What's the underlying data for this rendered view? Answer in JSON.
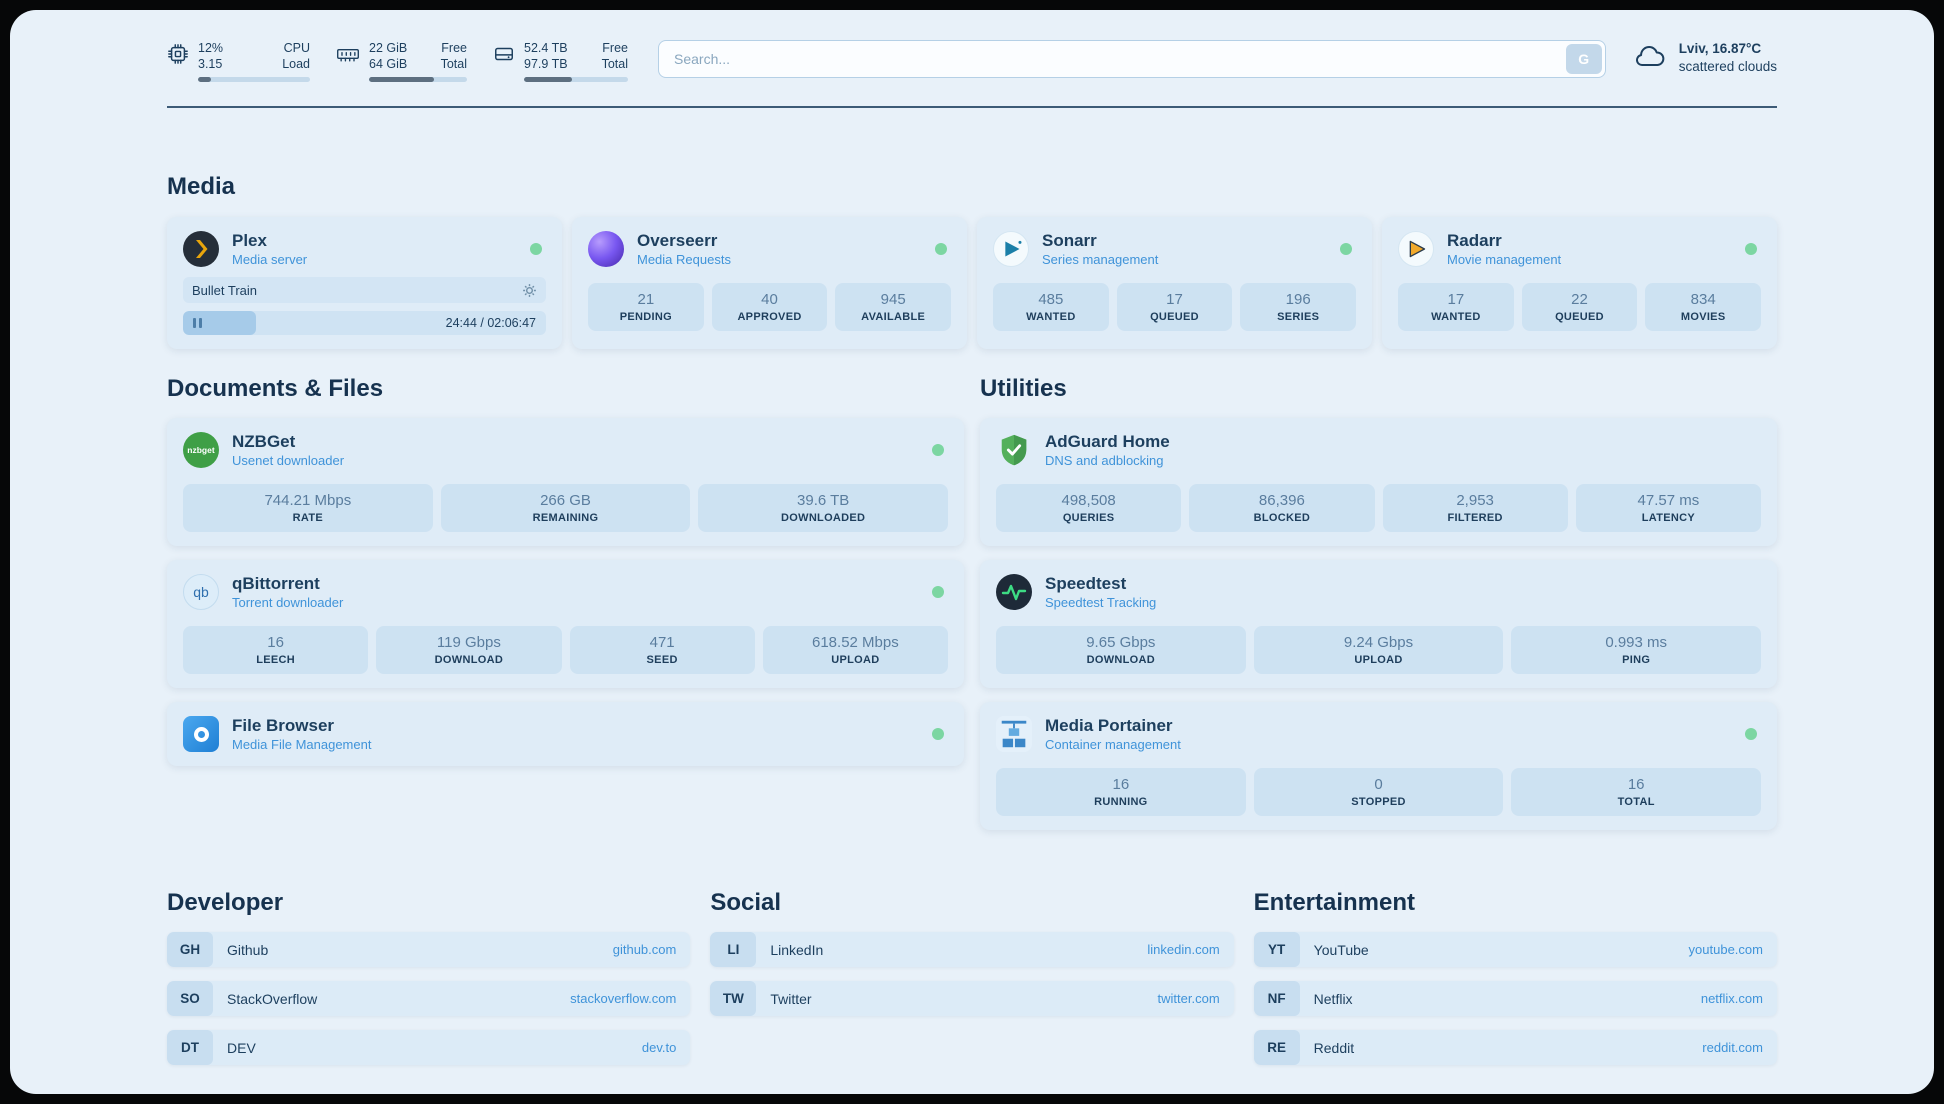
{
  "colors": {
    "background": "#e8f1f9",
    "card": "#dfecf7",
    "stat_box": "#cde2f2",
    "text": "#1d3f5e",
    "accent_link": "#3f93d9",
    "status_online": "#7cd6a2",
    "divider": "#2a4a68"
  },
  "icons": {
    "cpu": "chip-icon",
    "memory": "ram-icon",
    "disk": "hard-drive-icon",
    "weather": "cloud-icon",
    "plex": "plex-chevron-icon",
    "settings": "gear-icon",
    "playback": "pause-icon"
  },
  "topbar": {
    "cpu": {
      "value_top": "12%",
      "label_top": "CPU",
      "value_bottom": "3.15",
      "label_bottom": "Load",
      "bar_percent": 12
    },
    "memory": {
      "value_top": "22 GiB",
      "label_top": "Free",
      "value_bottom": "64 GiB",
      "label_bottom": "Total",
      "bar_percent": 66
    },
    "disk": {
      "value_top": "52.4 TB",
      "label_top": "Free",
      "value_bottom": "97.9 TB",
      "label_bottom": "Total",
      "bar_percent": 46
    },
    "search": {
      "placeholder": "Search...",
      "button": "G"
    },
    "weather": {
      "location": "Lviv, 16.87°C",
      "condition": "scattered clouds"
    }
  },
  "media": {
    "title": "Media",
    "plex": {
      "name": "Plex",
      "subtitle": "Media server",
      "status": "online",
      "now_playing": "Bullet Train",
      "time": "24:44 / 02:06:47",
      "progress_percent": 20
    },
    "overseerr": {
      "name": "Overseerr",
      "subtitle": "Media Requests",
      "status": "online",
      "stats": [
        {
          "value": "21",
          "label": "PENDING"
        },
        {
          "value": "40",
          "label": "APPROVED"
        },
        {
          "value": "945",
          "label": "AVAILABLE"
        }
      ]
    },
    "sonarr": {
      "name": "Sonarr",
      "subtitle": "Series management",
      "status": "online",
      "stats": [
        {
          "value": "485",
          "label": "WANTED"
        },
        {
          "value": "17",
          "label": "QUEUED"
        },
        {
          "value": "196",
          "label": "SERIES"
        }
      ]
    },
    "radarr": {
      "name": "Radarr",
      "subtitle": "Movie management",
      "status": "online",
      "stats": [
        {
          "value": "17",
          "label": "WANTED"
        },
        {
          "value": "22",
          "label": "QUEUED"
        },
        {
          "value": "834",
          "label": "MOVIES"
        }
      ]
    }
  },
  "documents": {
    "title": "Documents & Files",
    "nzbget": {
      "name": "NZBGet",
      "subtitle": "Usenet downloader",
      "icon_text": "nzbget",
      "status": "online",
      "stats": [
        {
          "value": "744.21 Mbps",
          "label": "RATE"
        },
        {
          "value": "266 GB",
          "label": "REMAINING"
        },
        {
          "value": "39.6 TB",
          "label": "DOWNLOADED"
        }
      ]
    },
    "qbittorrent": {
      "name": "qBittorrent",
      "subtitle": "Torrent downloader",
      "icon_text": "qb",
      "status": "online",
      "stats": [
        {
          "value": "16",
          "label": "LEECH"
        },
        {
          "value": "119 Gbps",
          "label": "DOWNLOAD"
        },
        {
          "value": "471",
          "label": "SEED"
        },
        {
          "value": "618.52 Mbps",
          "label": "UPLOAD"
        }
      ]
    },
    "filebrowser": {
      "name": "File Browser",
      "subtitle": "Media File Management",
      "status": "online"
    }
  },
  "utilities": {
    "title": "Utilities",
    "adguard": {
      "name": "AdGuard Home",
      "subtitle": "DNS and adblocking",
      "stats": [
        {
          "value": "498,508",
          "label": "QUERIES"
        },
        {
          "value": "86,396",
          "label": "BLOCKED"
        },
        {
          "value": "2,953",
          "label": "FILTERED"
        },
        {
          "value": "47.57 ms",
          "label": "LATENCY"
        }
      ]
    },
    "speedtest": {
      "name": "Speedtest",
      "subtitle": "Speedtest Tracking",
      "stats": [
        {
          "value": "9.65 Gbps",
          "label": "DOWNLOAD"
        },
        {
          "value": "9.24 Gbps",
          "label": "UPLOAD"
        },
        {
          "value": "0.993 ms",
          "label": "PING"
        }
      ]
    },
    "portainer": {
      "name": "Media Portainer",
      "subtitle": "Container management",
      "status": "online",
      "stats": [
        {
          "value": "16",
          "label": "RUNNING"
        },
        {
          "value": "0",
          "label": "STOPPED"
        },
        {
          "value": "16",
          "label": "TOTAL"
        }
      ]
    }
  },
  "bookmarks": {
    "developer": {
      "title": "Developer",
      "items": [
        {
          "abbr": "GH",
          "name": "Github",
          "domain": "github.com"
        },
        {
          "abbr": "SO",
          "name": "StackOverflow",
          "domain": "stackoverflow.com"
        },
        {
          "abbr": "DT",
          "name": "DEV",
          "domain": "dev.to"
        }
      ]
    },
    "social": {
      "title": "Social",
      "items": [
        {
          "abbr": "LI",
          "name": "LinkedIn",
          "domain": "linkedin.com"
        },
        {
          "abbr": "TW",
          "name": "Twitter",
          "domain": "twitter.com"
        }
      ]
    },
    "entertainment": {
      "title": "Entertainment",
      "items": [
        {
          "abbr": "YT",
          "name": "YouTube",
          "domain": "youtube.com"
        },
        {
          "abbr": "NF",
          "name": "Netflix",
          "domain": "netflix.com"
        },
        {
          "abbr": "RE",
          "name": "Reddit",
          "domain": "reddit.com"
        }
      ]
    }
  }
}
